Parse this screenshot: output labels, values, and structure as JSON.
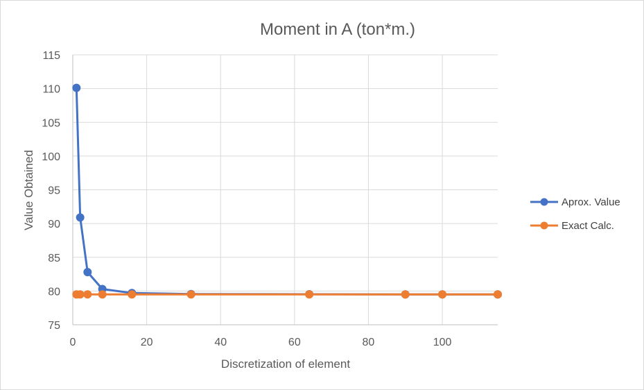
{
  "chart_data": {
    "type": "line",
    "title": "Moment in A (ton*m.)",
    "xlabel": "Discretization of element",
    "ylabel": "Value Obtained",
    "xlim": [
      0,
      115
    ],
    "ylim": [
      75,
      115
    ],
    "x_ticks": [
      0,
      20,
      40,
      60,
      80,
      100
    ],
    "y_ticks": [
      75,
      80,
      85,
      90,
      95,
      100,
      105,
      110,
      115
    ],
    "grid": true,
    "legend_position": "right",
    "series": [
      {
        "name": "Aprox. Value",
        "color": "#4472c4",
        "x": [
          1,
          2,
          4,
          8,
          16,
          32,
          64,
          90,
          100,
          115
        ],
        "y": [
          110.1,
          90.9,
          82.8,
          80.3,
          79.7,
          79.55,
          79.52,
          79.5,
          79.5,
          79.5
        ]
      },
      {
        "name": "Exact Calc.",
        "color": "#ed7d31",
        "x": [
          1,
          2,
          4,
          8,
          16,
          32,
          64,
          90,
          100,
          115
        ],
        "y": [
          79.5,
          79.5,
          79.5,
          79.5,
          79.5,
          79.5,
          79.5,
          79.5,
          79.5,
          79.5
        ]
      }
    ]
  }
}
